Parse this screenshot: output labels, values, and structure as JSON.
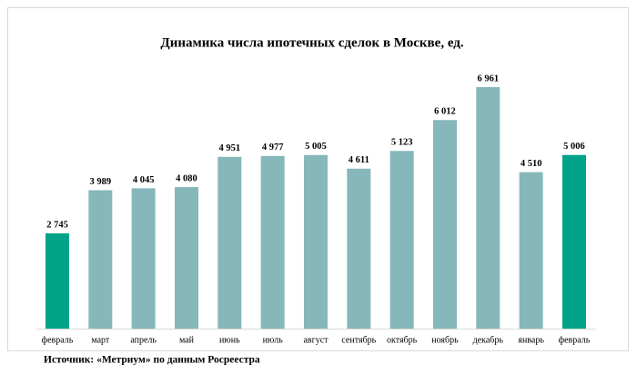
{
  "chart_data": {
    "type": "bar",
    "title": "Динамика числа ипотечных сделок в Москве, ед.",
    "categories": [
      "февраль",
      "март",
      "апрель",
      "май",
      "июнь",
      "июль",
      "август",
      "сентябрь",
      "октябрь",
      "ноябрь",
      "декабрь",
      "январь",
      "февраль"
    ],
    "values": [
      2745,
      3989,
      4045,
      4080,
      4951,
      4977,
      5005,
      4611,
      5123,
      6012,
      6961,
      4510,
      5006
    ],
    "value_labels": [
      "2 745",
      "3 989",
      "4 045",
      "4 080",
      "4 951",
      "4 977",
      "5 005",
      "4 611",
      "5 123",
      "6 012",
      "6 961",
      "4 510",
      "5 006"
    ],
    "colors": [
      "#00a388",
      "#86b7ba",
      "#86b7ba",
      "#86b7ba",
      "#86b7ba",
      "#86b7ba",
      "#86b7ba",
      "#86b7ba",
      "#86b7ba",
      "#86b7ba",
      "#86b7ba",
      "#86b7ba",
      "#00a388"
    ],
    "source": "Источник: «Метриум» по данным Росреестра"
  }
}
